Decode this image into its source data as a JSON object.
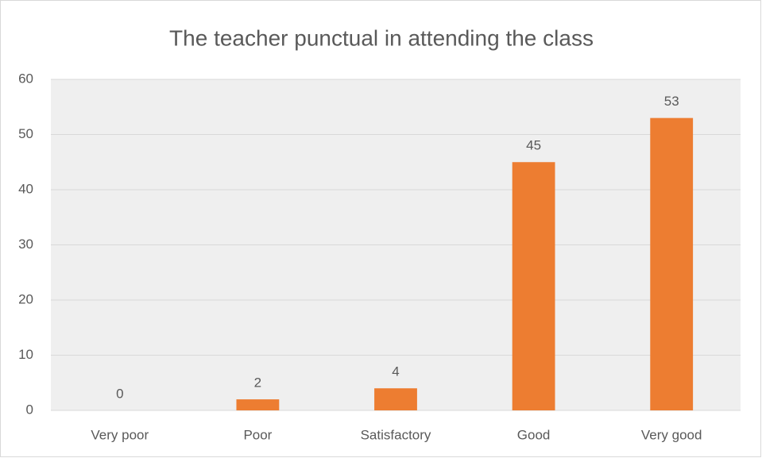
{
  "chart_data": {
    "type": "bar",
    "title": "The teacher punctual in attending the class",
    "categories": [
      "Very poor",
      "Poor",
      "Satisfactory",
      "Good",
      "Very good"
    ],
    "values": [
      0,
      2,
      4,
      45,
      53
    ],
    "color": "#ed7d31",
    "ylim": [
      0,
      60
    ],
    "yticks": [
      0,
      10,
      20,
      30,
      40,
      50,
      60
    ],
    "grid": true,
    "data_labels": true
  }
}
